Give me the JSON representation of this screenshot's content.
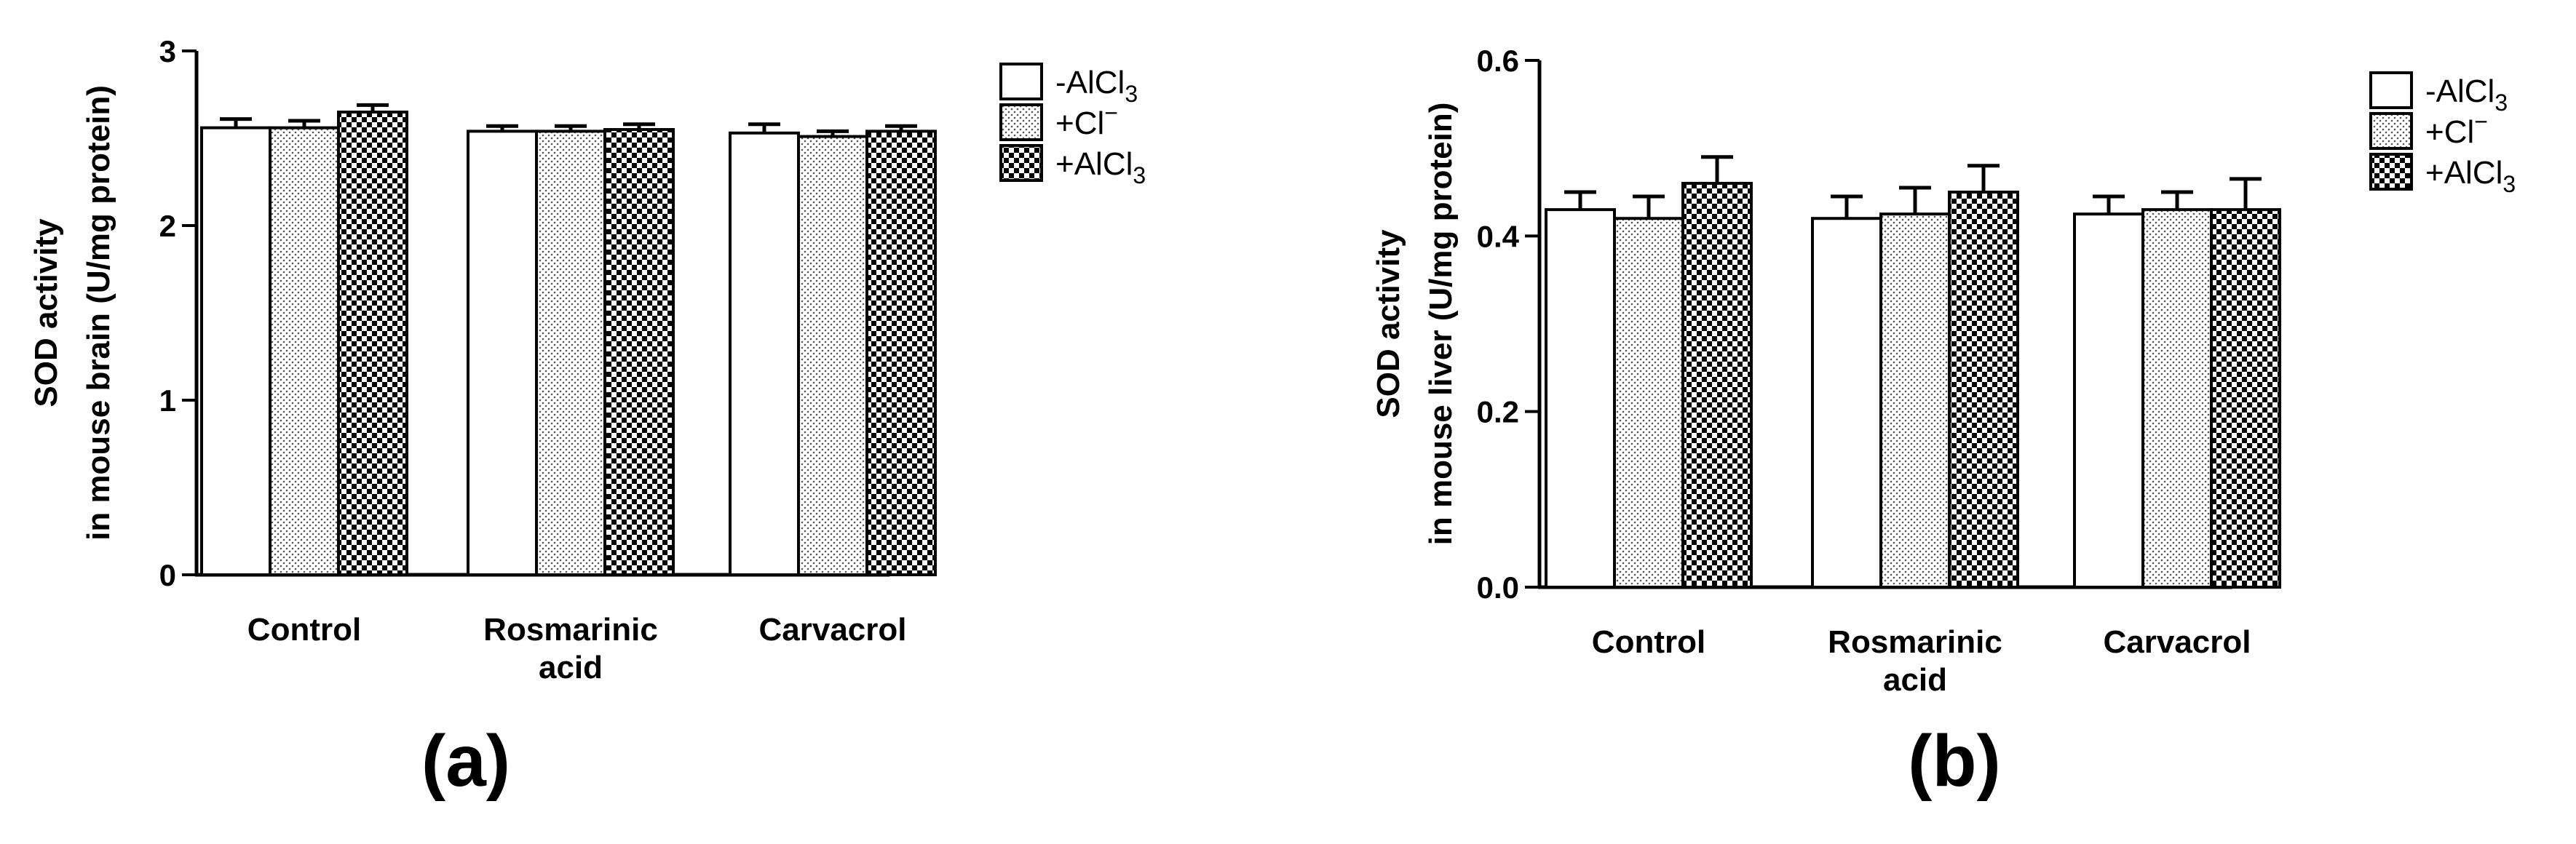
{
  "chart_data": [
    {
      "type": "bar",
      "panel_label": "(a)",
      "ylabel_line1": "SOD activity",
      "ylabel_line2": "in mouse brain (U/mg protein)",
      "ylim": [
        0,
        3
      ],
      "yticks": [
        "0",
        "1",
        "2",
        "3"
      ],
      "categories": [
        [
          "Control"
        ],
        [
          "Rosmarinic",
          "acid"
        ],
        [
          "Carvacrol"
        ]
      ],
      "series": [
        {
          "name": "-AlCl",
          "sub": "3",
          "sup": "",
          "pattern": "white",
          "values": [
            2.56,
            2.54,
            2.53
          ],
          "errors": [
            0.05,
            0.03,
            0.05
          ]
        },
        {
          "name": "+Cl",
          "sub": "",
          "sup": "−",
          "pattern": "dots",
          "values": [
            2.56,
            2.54,
            2.51
          ],
          "errors": [
            0.04,
            0.03,
            0.03
          ]
        },
        {
          "name": "+AlCl",
          "sub": "3",
          "sup": "",
          "pattern": "checker",
          "values": [
            2.65,
            2.55,
            2.54
          ],
          "errors": [
            0.04,
            0.03,
            0.03
          ]
        }
      ],
      "legend_position": "right"
    },
    {
      "type": "bar",
      "panel_label": "(b)",
      "ylabel_line1": "SOD activity",
      "ylabel_line2": "in mouse liver (U/mg protein)",
      "ylim": [
        0,
        0.6
      ],
      "yticks": [
        "0.0",
        "0.2",
        "0.4",
        "0.6"
      ],
      "categories": [
        [
          "Control"
        ],
        [
          "Rosmarinic",
          "acid"
        ],
        [
          "Carvacrol"
        ]
      ],
      "series": [
        {
          "name": "-AlCl",
          "sub": "3",
          "sup": "",
          "pattern": "white",
          "values": [
            0.43,
            0.42,
            0.425
          ],
          "errors": [
            0.02,
            0.025,
            0.02
          ]
        },
        {
          "name": "+Cl",
          "sub": "",
          "sup": "−",
          "pattern": "dots",
          "values": [
            0.42,
            0.425,
            0.43
          ],
          "errors": [
            0.025,
            0.03,
            0.02
          ]
        },
        {
          "name": "+AlCl",
          "sub": "3",
          "sup": "",
          "pattern": "checker",
          "values": [
            0.46,
            0.45,
            0.43
          ],
          "errors": [
            0.03,
            0.03,
            0.035
          ]
        }
      ],
      "legend_position": "right"
    }
  ]
}
